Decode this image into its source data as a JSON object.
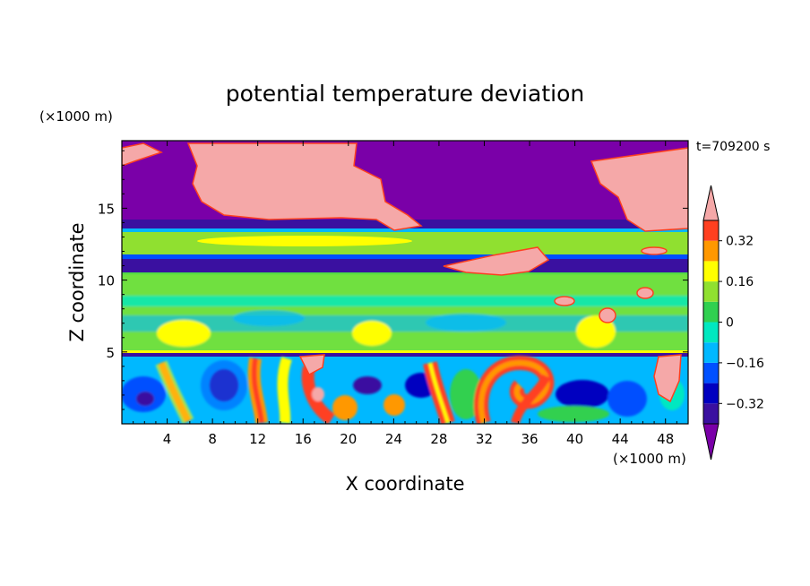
{
  "chart_data": {
    "type": "heatmap",
    "title": "potential temperature deviation",
    "xlabel": "X coordinate",
    "ylabel": "Z coordinate",
    "x_unit": "(×1000 m)",
    "y_unit": "(×1000 m)",
    "time_label": "t=709200 s",
    "xlim": [
      0,
      50
    ],
    "ylim": [
      0,
      19.7
    ],
    "x_ticks": [
      4,
      8,
      12,
      16,
      20,
      24,
      28,
      32,
      36,
      40,
      44,
      48
    ],
    "y_ticks": [
      5,
      10,
      15
    ],
    "x_tick_labels": [
      "4",
      "8",
      "12",
      "16",
      "20",
      "24",
      "28",
      "32",
      "36",
      "40",
      "44",
      "48"
    ],
    "y_tick_labels": [
      "5",
      "10",
      "15"
    ],
    "grid": false,
    "colorbar": {
      "placement": "right",
      "tick_values": [
        0.32,
        0.16,
        0,
        -0.16,
        -0.32
      ],
      "tick_labels": [
        "0.32",
        "0.16",
        "0",
        "−0.16",
        "−0.32"
      ],
      "levels": [
        -0.4,
        -0.32,
        -0.24,
        -0.16,
        -0.08,
        0,
        0.08,
        0.16,
        0.24,
        0.32,
        0.4
      ],
      "colors": [
        "#7a00a8",
        "#3a10a0",
        "#0000c0",
        "#0050ff",
        "#00b8ff",
        "#00e8c0",
        "#30d050",
        "#90e030",
        "#ffff00",
        "#ff9800",
        "#ff4020",
        "#f5a8a8"
      ]
    },
    "regions": [
      {
        "feature": "lower troposphere turbulent layer",
        "z_range": [
          0,
          5
        ],
        "value_range": [
          -0.4,
          0.4
        ]
      },
      {
        "feature": "thin warm inversion line",
        "z": 5,
        "value": 0.24
      },
      {
        "feature": "mid layer slightly warm/neutral",
        "z_range": [
          5,
          10.3
        ],
        "value": 0.04
      },
      {
        "feature": "cold band",
        "z_range": [
          10.5,
          11.3
        ],
        "value": -0.32
      },
      {
        "feature": "warm band",
        "z_range": [
          12.2,
          13.0
        ],
        "value": 0.12
      },
      {
        "feature": "cold band",
        "z_range": [
          13.5,
          14.3
        ],
        "value": -0.3
      },
      {
        "feature": "upper layer: strong cold (purple) and strong warm (pink) patches",
        "z_range": [
          14.5,
          19.7
        ],
        "value_range": [
          -0.4,
          0.4
        ]
      }
    ]
  }
}
